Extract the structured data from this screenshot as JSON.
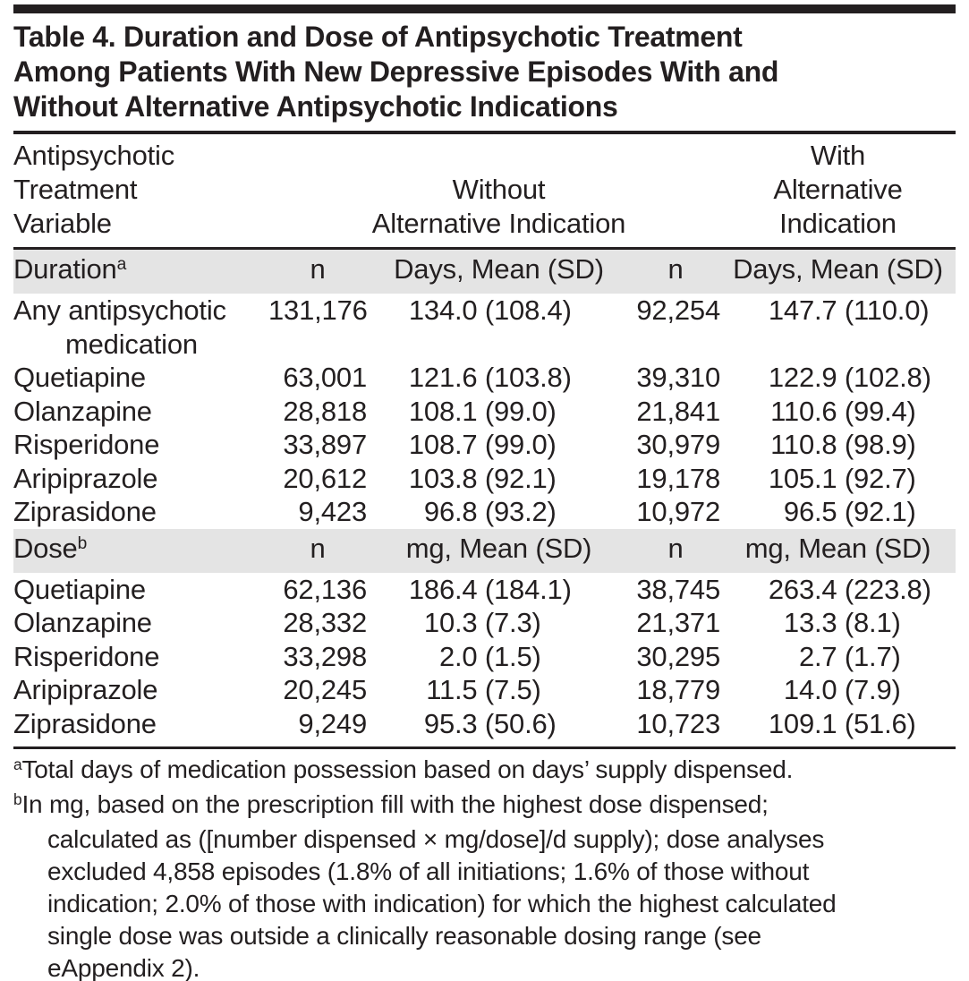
{
  "title": {
    "lines": [
      "Table 4. Duration and Dose of Antipsychotic Treatment",
      "Among Patients With New Depressive Episodes With and",
      "Without Alternative Antipsychotic Indications"
    ]
  },
  "table": {
    "header": {
      "stub_lines": [
        "Antipsychotic",
        "Treatment",
        "Variable"
      ],
      "group_without_lines": [
        "Without",
        "Alternative Indication"
      ],
      "group_with_lines": [
        "With",
        "Alternative Indication"
      ]
    },
    "sections": [
      {
        "name": "Duration",
        "sup": "a",
        "n_header": "n",
        "unit_header": "Days, Mean (SD)",
        "rows": [
          {
            "label": "Any antipsychotic medication",
            "without_n": "131,176",
            "without_mean_sd": "134.0 (108.4)",
            "with_n": "92,254",
            "with_mean_sd": "147.7 (110.0)"
          },
          {
            "label": "Quetiapine",
            "without_n": "63,001",
            "without_mean_sd": "121.6 (103.8)",
            "with_n": "39,310",
            "with_mean_sd": "122.9 (102.8)"
          },
          {
            "label": "Olanzapine",
            "without_n": "28,818",
            "without_mean_sd": "108.1 (99.0)",
            "with_n": "21,841",
            "with_mean_sd": "110.6 (99.4)"
          },
          {
            "label": "Risperidone",
            "without_n": "33,897",
            "without_mean_sd": "108.7 (99.0)",
            "with_n": "30,979",
            "with_mean_sd": "110.8 (98.9)"
          },
          {
            "label": "Aripiprazole",
            "without_n": "20,612",
            "without_mean_sd": "103.8 (92.1)",
            "with_n": "19,178",
            "with_mean_sd": "105.1 (92.7)"
          },
          {
            "label": "Ziprasidone",
            "without_n": "9,423",
            "without_mean_sd": "96.8 (93.2)",
            "with_n": "10,972",
            "with_mean_sd": "96.5 (92.1)"
          }
        ]
      },
      {
        "name": "Dose",
        "sup": "b",
        "n_header": "n",
        "unit_header": "mg, Mean (SD)",
        "rows": [
          {
            "label": "Quetiapine",
            "without_n": "62,136",
            "without_mean_sd": "186.4 (184.1)",
            "with_n": "38,745",
            "with_mean_sd": "263.4 (223.8)"
          },
          {
            "label": "Olanzapine",
            "without_n": "28,332",
            "without_mean_sd": "10.3 (7.3)",
            "with_n": "21,371",
            "with_mean_sd": "13.3 (8.1)"
          },
          {
            "label": "Risperidone",
            "without_n": "33,298",
            "without_mean_sd": "2.0 (1.5)",
            "with_n": "30,295",
            "with_mean_sd": "2.7 (1.7)"
          },
          {
            "label": "Aripiprazole",
            "without_n": "20,245",
            "without_mean_sd": "11.5 (7.5)",
            "with_n": "18,779",
            "with_mean_sd": "14.0 (7.9)"
          },
          {
            "label": "Ziprasidone",
            "without_n": "9,249",
            "without_mean_sd": "95.3 (50.6)",
            "with_n": "10,723",
            "with_mean_sd": "109.1 (51.6)"
          }
        ]
      }
    ]
  },
  "footnotes": [
    {
      "sup": "a",
      "lines": [
        "Total days of medication possession based on days’ supply dispensed."
      ]
    },
    {
      "sup": "b",
      "lines": [
        "In mg, based on the prescription fill with the highest dose dispensed;",
        "calculated as ([number dispensed × mg/dose]/d supply); dose analyses",
        "excluded 4,858 episodes (1.8% of all initiations; 1.6% of those without",
        "indication; 2.0% of those with indication) for which the highest calculated",
        "single dose was outside a clinically reasonable dosing range (see",
        "eAppendix 2)."
      ]
    }
  ],
  "colors": {
    "text": "#231f20",
    "rule": "#231f20",
    "band": "#e4e4e4",
    "background": "#ffffff"
  }
}
